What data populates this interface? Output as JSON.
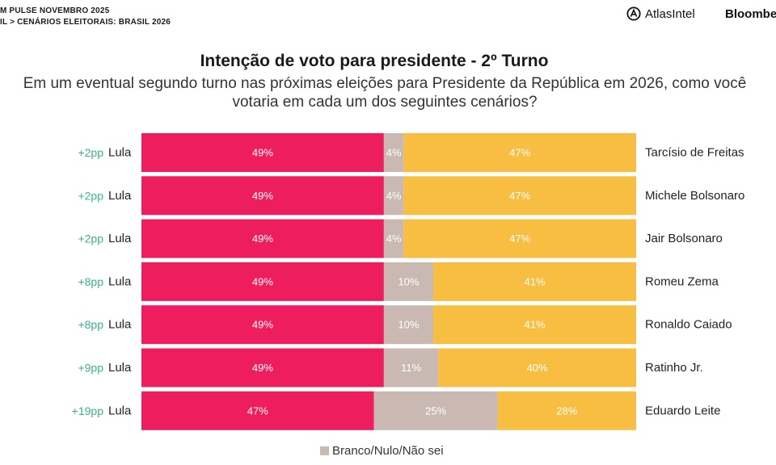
{
  "header": {
    "line1": "M PULSE NOVEMBRO 2025",
    "line2": "IL > CENÁRIOS ELEITORAIS: BRASIL 2026",
    "logo_atlas": "AtlasIntel",
    "logo_bloomberg": "Bloombe"
  },
  "title": "Intenção de voto para presidente - 2º Turno",
  "subtitle": "Em um eventual segundo turno nas próximas eleições para Presidente da República em 2026, como você votaria em cada um dos seguintes cenários?",
  "colors": {
    "lula": "#ee1e5e",
    "blank": "#c9b9b2",
    "opponent": "#f7be42",
    "margin": "#3bb38a"
  },
  "chart_data": {
    "type": "bar",
    "orientation": "horizontal-stacked-100",
    "series_names": [
      "Lula",
      "Branco/Nulo/Não sei",
      "Oponente"
    ],
    "rows": [
      {
        "margin": "+2pp",
        "left": "Lula",
        "right": "Tarcísio de Freitas",
        "lula": 49,
        "blank": 4,
        "opponent": 47
      },
      {
        "margin": "+2pp",
        "left": "Lula",
        "right": "Michele Bolsonaro",
        "lula": 49,
        "blank": 4,
        "opponent": 47
      },
      {
        "margin": "+2pp",
        "left": "Lula",
        "right": "Jair Bolsonaro",
        "lula": 49,
        "blank": 4,
        "opponent": 47
      },
      {
        "margin": "+8pp",
        "left": "Lula",
        "right": "Romeu Zema",
        "lula": 49,
        "blank": 10,
        "opponent": 41
      },
      {
        "margin": "+8pp",
        "left": "Lula",
        "right": "Ronaldo Caiado",
        "lula": 49,
        "blank": 10,
        "opponent": 41
      },
      {
        "margin": "+9pp",
        "left": "Lula",
        "right": "Ratinho Jr.",
        "lula": 49,
        "blank": 11,
        "opponent": 40
      },
      {
        "margin": "+19pp",
        "left": "Lula",
        "right": "Eduardo Leite",
        "lula": 47,
        "blank": 25,
        "opponent": 28
      }
    ],
    "legend": [
      {
        "label": "Branco/Nulo/Não sei",
        "color": "#c9b9b2"
      }
    ],
    "xlim": [
      0,
      100
    ]
  }
}
